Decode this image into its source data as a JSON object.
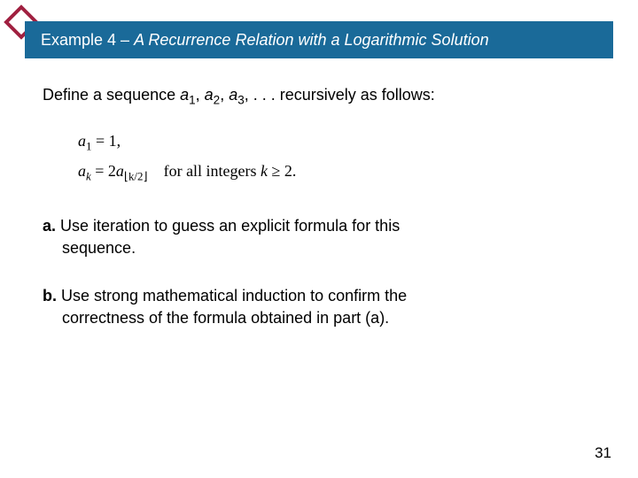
{
  "title": {
    "prefix": "Example 4 – ",
    "italic": "A Recurrence Relation with a Logarithmic Solution"
  },
  "intro": {
    "lead": "Define a sequence ",
    "a1": "a",
    "s1": "1",
    "c1": ", ",
    "a2": "a",
    "s2": "2",
    "c2": ", ",
    "a3": "a",
    "s3": "3",
    "tail": ", . . . recursively as follows:"
  },
  "math": {
    "line1_a": "a",
    "line1_sub": "1",
    "line1_eq": " = 1,",
    "line2_a": "a",
    "line2_sub": "k",
    "line2_mid": " = 2",
    "line2_a2": "a",
    "line2_floor": "⌊k/2⌋",
    "line2_tail": "    for all integers ",
    "line2_k": "k",
    "line2_end": " ≥ 2."
  },
  "partA": {
    "label": "a.",
    "text1": " Use iteration to guess an explicit formula for this",
    "text2": "sequence."
  },
  "partB": {
    "label": "b.",
    "text1": " Use strong mathematical induction to confirm the",
    "text2": "correctness of the formula obtained in part (a)."
  },
  "pageNumber": "31",
  "colors": {
    "titlebar": "#1a6a99",
    "diamond_border": "#a02040",
    "background": "#ffffff"
  }
}
